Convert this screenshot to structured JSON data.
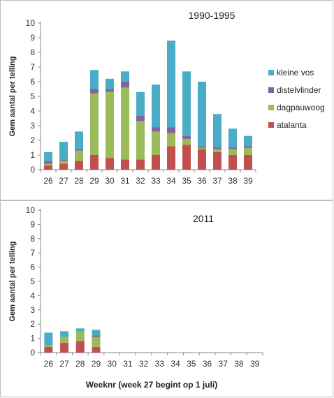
{
  "colors": {
    "atalanta": "#c0504d",
    "dagpauwoog": "#9bbb59",
    "distelvlinder": "#8064a2",
    "kleine_vos": "#4bacc6"
  },
  "legend": {
    "items": [
      {
        "key": "kleine_vos",
        "label": "kleine vos"
      },
      {
        "key": "distelvlinder",
        "label": "distelvlinder"
      },
      {
        "key": "dagpauwoog",
        "label": "dagpauwoog"
      },
      {
        "key": "atalanta",
        "label": "atalanta"
      }
    ]
  },
  "chart_data": [
    {
      "type": "bar",
      "stacked": true,
      "title": "1990-1995",
      "ylabel": "Gem aantal per telling",
      "xlabel": "",
      "ylim": [
        0,
        10
      ],
      "yticks": [
        0,
        1,
        2,
        3,
        4,
        5,
        6,
        7,
        8,
        9,
        10
      ],
      "grid": false,
      "legend_position": "right",
      "categories": [
        "26",
        "27",
        "28",
        "29",
        "30",
        "31",
        "32",
        "33",
        "34",
        "35",
        "36",
        "37",
        "38",
        "39"
      ],
      "series": [
        {
          "name": "atalanta",
          "values": [
            0.3,
            0.4,
            0.6,
            1.0,
            0.8,
            0.7,
            0.7,
            1.0,
            1.6,
            1.7,
            1.4,
            1.2,
            1.0,
            1.0
          ]
        },
        {
          "name": "dagpauwoog",
          "values": [
            0.1,
            0.2,
            0.7,
            4.2,
            4.5,
            4.9,
            2.6,
            1.6,
            0.9,
            0.4,
            0.1,
            0.2,
            0.4,
            0.5
          ]
        },
        {
          "name": "distelvlinder",
          "values": [
            0.2,
            0.1,
            0.1,
            0.3,
            0.2,
            0.4,
            0.4,
            0.3,
            0.4,
            0.2,
            0.1,
            0.1,
            0.1,
            0.1
          ]
        },
        {
          "name": "kleine vos",
          "values": [
            0.6,
            1.2,
            1.2,
            1.3,
            0.7,
            0.7,
            1.6,
            2.9,
            5.9,
            4.4,
            4.4,
            2.3,
            1.3,
            0.7
          ]
        }
      ]
    },
    {
      "type": "bar",
      "stacked": true,
      "title": "2011",
      "ylabel": "Gem aantal per telling",
      "xlabel": "Weeknr (week 27 begint op 1 juli)",
      "ylim": [
        0,
        10
      ],
      "yticks": [
        0,
        1,
        2,
        3,
        4,
        5,
        6,
        7,
        8,
        9,
        10
      ],
      "grid": false,
      "categories": [
        "26",
        "27",
        "28",
        "29",
        "30",
        "31",
        "32",
        "33",
        "34",
        "35",
        "36",
        "37",
        "38",
        "39"
      ],
      "series": [
        {
          "name": "atalanta",
          "values": [
            0.4,
            0.7,
            0.8,
            0.4,
            0,
            0,
            0,
            0,
            0,
            0,
            0,
            0,
            0,
            0
          ]
        },
        {
          "name": "dagpauwoog",
          "values": [
            0.1,
            0.4,
            0.7,
            0.7,
            0,
            0,
            0,
            0,
            0,
            0,
            0,
            0,
            0,
            0
          ]
        },
        {
          "name": "distelvlinder",
          "values": [
            0,
            0,
            0,
            0.1,
            0,
            0,
            0,
            0,
            0,
            0,
            0,
            0,
            0,
            0
          ]
        },
        {
          "name": "kleine vos",
          "values": [
            0.9,
            0.4,
            0.2,
            0.4,
            0,
            0,
            0,
            0,
            0,
            0,
            0,
            0,
            0,
            0
          ]
        }
      ]
    }
  ]
}
